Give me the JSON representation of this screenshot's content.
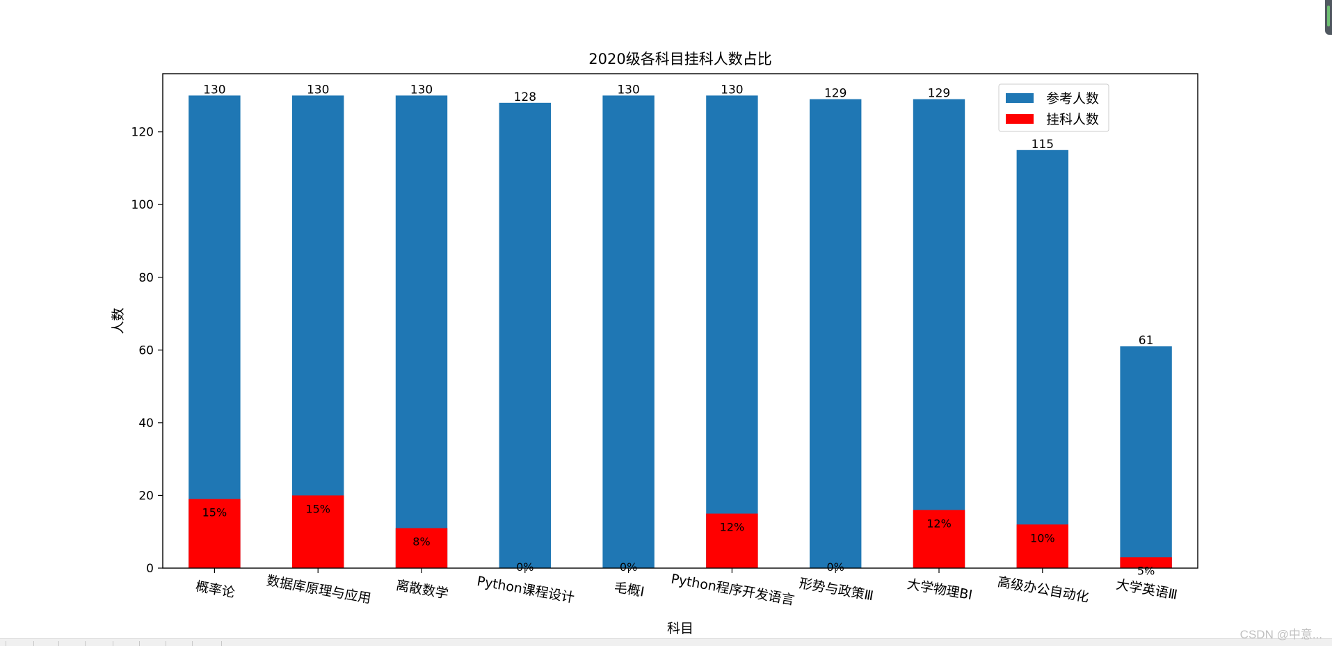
{
  "chart_data": {
    "type": "bar",
    "stacked": false,
    "title": "2020级各科目挂科人数占比",
    "xlabel": "科目",
    "ylabel": "人数",
    "ylim": [
      0,
      136
    ],
    "yticks": [
      0,
      20,
      40,
      60,
      80,
      100,
      120
    ],
    "grid": false,
    "legend_position": "top-right",
    "categories": [
      "概率论",
      "数据库原理与应用",
      "离散数学",
      "Python课程设计",
      "毛概Ⅰ",
      "Python程序开发语言",
      "形势与政策Ⅲ",
      "大学物理BⅠ",
      "高级办公自动化",
      "大学英语Ⅲ"
    ],
    "series": [
      {
        "name": "参考人数",
        "color": "#1f77b4",
        "values": [
          130,
          130,
          130,
          128,
          130,
          130,
          129,
          129,
          115,
          61
        ]
      },
      {
        "name": "挂科人数",
        "color": "#ff0000",
        "values": [
          19,
          20,
          11,
          0,
          0,
          15,
          0,
          16,
          12,
          3
        ]
      }
    ],
    "top_labels": [
      "130",
      "130",
      "130",
      "128",
      "130",
      "130",
      "129",
      "129",
      "115",
      "61"
    ],
    "fail_labels": [
      "15%",
      "15%",
      "8%",
      "0%",
      "0%",
      "12%",
      "0%",
      "12%",
      "10%",
      "5%"
    ]
  },
  "watermark": "CSDN @中意..."
}
